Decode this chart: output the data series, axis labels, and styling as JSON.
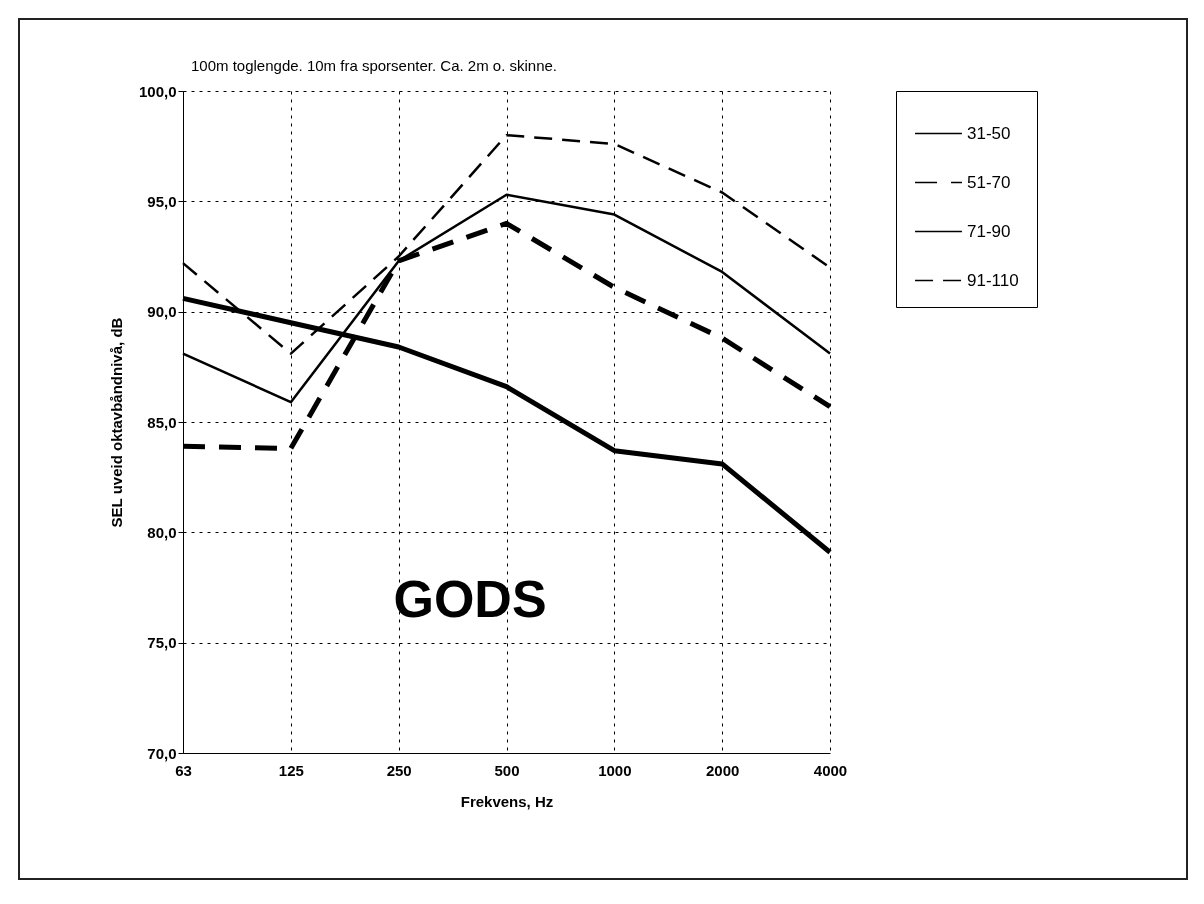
{
  "chart_data": {
    "type": "line",
    "title": "100m toglengde.  10m fra sporsenter.  Ca. 2m o. skinne.",
    "xlabel": "Frekvens, Hz",
    "ylabel": "SEL uveid oktavbåndnivå, dB",
    "annotations": [
      "GODS"
    ],
    "categories": [
      "63",
      "125",
      "250",
      "500",
      "1000",
      "2000",
      "4000"
    ],
    "series": [
      {
        "name": "31-50",
        "color": "#000000",
        "line_style": "solid",
        "values": [
          90.6,
          89.5,
          88.4,
          86.6,
          83.7,
          83.1,
          79.1
        ]
      },
      {
        "name": "51-70",
        "color": "#000000",
        "line_style": "dashed",
        "values": [
          83.9,
          83.8,
          92.3,
          94.0,
          91.1,
          88.8,
          85.7
        ]
      },
      {
        "name": "71-90",
        "color": "#000000",
        "line_style": "solid",
        "values": [
          88.1,
          85.9,
          92.3,
          95.3,
          94.4,
          91.8,
          88.1
        ]
      },
      {
        "name": "91-110",
        "color": "#000000",
        "line_style": "dashed",
        "values": [
          92.2,
          88.1,
          92.5,
          98.0,
          97.6,
          95.4,
          92.0
        ]
      }
    ],
    "ylim": [
      70,
      100
    ],
    "yticks": [
      {
        "value": 70,
        "label": "70,0"
      },
      {
        "value": 75,
        "label": "75,0"
      },
      {
        "value": 80,
        "label": "80,0"
      },
      {
        "value": 85,
        "label": "85,0"
      },
      {
        "value": 90,
        "label": "90,0"
      },
      {
        "value": 95,
        "label": "95,0"
      },
      {
        "value": 100,
        "label": "100,0"
      }
    ],
    "grid": true,
    "legend": "right"
  }
}
